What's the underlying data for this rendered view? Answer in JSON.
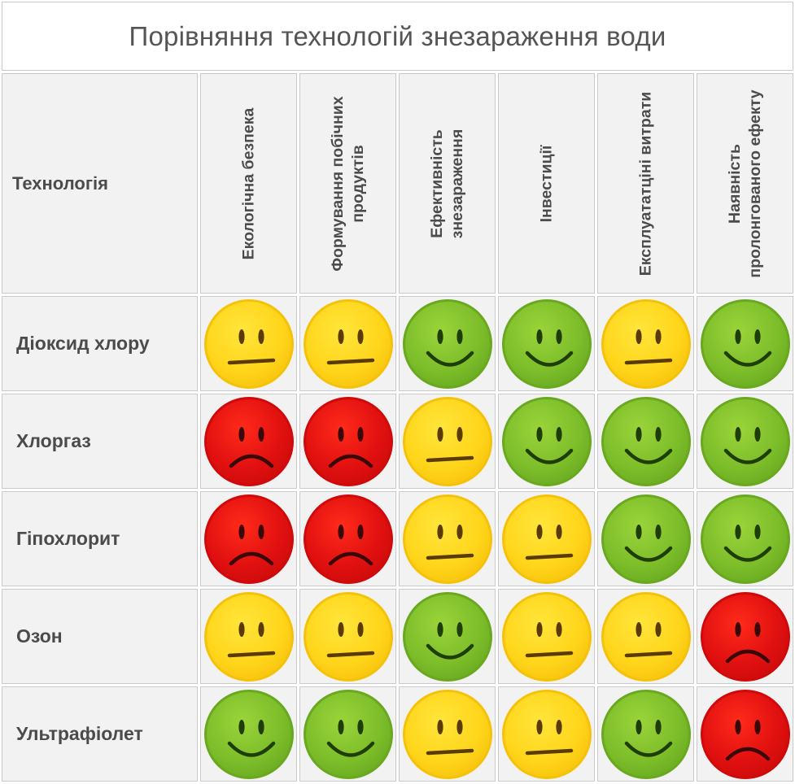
{
  "title": "Порівняння технологій знезараження води",
  "header": {
    "technology_label": "Технологія",
    "columns": [
      "Екологічна безпека",
      "Формування побічних продуктів",
      "Ефективність знезараження",
      "Інвестиції",
      "Експлуататціні витрати",
      "Наявність пролонгованого ефекту"
    ]
  },
  "rows": [
    {
      "label": "Діоксид хлору",
      "ratings": [
        "neutral",
        "neutral",
        "good",
        "good",
        "neutral",
        "good"
      ]
    },
    {
      "label": "Хлоргаз",
      "ratings": [
        "bad",
        "bad",
        "neutral",
        "good",
        "good",
        "good"
      ]
    },
    {
      "label": "Гіпохлорит",
      "ratings": [
        "bad",
        "bad",
        "neutral",
        "neutral",
        "good",
        "good"
      ]
    },
    {
      "label": "Озон",
      "ratings": [
        "neutral",
        "neutral",
        "good",
        "neutral",
        "neutral",
        "bad"
      ]
    },
    {
      "label": "Ультрафіолет",
      "ratings": [
        "good",
        "good",
        "neutral",
        "neutral",
        "good",
        "bad"
      ]
    }
  ],
  "rating_icons": {
    "good": "smiling-face-icon",
    "neutral": "neutral-face-icon",
    "bad": "frowning-face-icon"
  },
  "colors": {
    "good": "#7cbd2a",
    "neutral": "#ffd51a",
    "bad": "#e01010"
  }
}
